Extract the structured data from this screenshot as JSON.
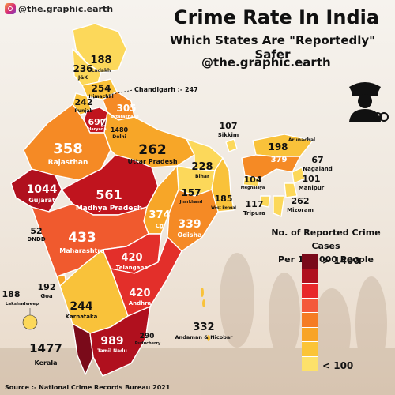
{
  "header": {
    "handle": "@the.graphic.earth",
    "title": "Crime Rate In India",
    "subtitle": "Which States Are \"Reportedly\" Safer",
    "credit": "@the.graphic.earth"
  },
  "legend": {
    "title_line1": "No. of Reported Crime Cases",
    "title_line2": "Per 100,000 People",
    "high_label": "> 1400",
    "low_label": "< 100",
    "colors": [
      "#7a0a1a",
      "#b0101e",
      "#e8282a",
      "#f4593b",
      "#f57c24",
      "#f8a426",
      "#fbc437",
      "#fde16a"
    ]
  },
  "source": "Source :- National Crime Records Bureau 2021",
  "colors": {
    "very_high": "#c0141e",
    "high": "#e32f2a",
    "mid_high": "#f05a2e",
    "mid": "#f58a25",
    "low_mid": "#f7a628",
    "low": "#f9c23a",
    "very_low": "#fcd85a"
  },
  "map": {
    "regions": [
      {
        "name": "Ladakh",
        "value": "188"
      },
      {
        "name": "J&K",
        "value": "236"
      },
      {
        "name": "Himachal",
        "value": "254"
      },
      {
        "name": "Punjab",
        "value": "242"
      },
      {
        "name": "Chandigarh",
        "value": "247",
        "label": "Chandigarh :- 247"
      },
      {
        "name": "Uttarakhand",
        "value": "305"
      },
      {
        "name": "Haryana",
        "value": "697"
      },
      {
        "name": "Delhi",
        "value": "1480"
      },
      {
        "name": "Rajasthan",
        "value": "358"
      },
      {
        "name": "Uttar Pradesh",
        "value": "262"
      },
      {
        "name": "Bihar",
        "value": "228"
      },
      {
        "name": "Sikkim",
        "value": "107"
      },
      {
        "name": "Arunachal",
        "value": "198"
      },
      {
        "name": "Assam",
        "value": "379"
      },
      {
        "name": "Nagaland",
        "value": "67"
      },
      {
        "name": "Meghalaya",
        "value": "104"
      },
      {
        "name": "Manipur",
        "value": "101"
      },
      {
        "name": "Mizoram",
        "value": "262"
      },
      {
        "name": "Tripura",
        "value": "117"
      },
      {
        "name": "West Bengal",
        "value": "185"
      },
      {
        "name": "Jharkhand",
        "value": "157"
      },
      {
        "name": "Gujarat",
        "value": "1044"
      },
      {
        "name": "Madhya Pradesh",
        "value": "561"
      },
      {
        "name": "Cg",
        "value": "374"
      },
      {
        "name": "Odisha",
        "value": "339"
      },
      {
        "name": "DNDD",
        "value": "52"
      },
      {
        "name": "Maharashtra",
        "value": "433"
      },
      {
        "name": "Telangana",
        "value": "420"
      },
      {
        "name": "Andhra",
        "value": "420"
      },
      {
        "name": "Goa",
        "value": "192"
      },
      {
        "name": "Karnataka",
        "value": "244"
      },
      {
        "name": "Lakshadweep",
        "value": "188"
      },
      {
        "name": "Tamil Nadu",
        "value": "989"
      },
      {
        "name": "Puducherry",
        "value": "290"
      },
      {
        "name": "Kerala",
        "value": "1477"
      },
      {
        "name": "Andaman & Nicobar",
        "value": "332"
      }
    ]
  }
}
